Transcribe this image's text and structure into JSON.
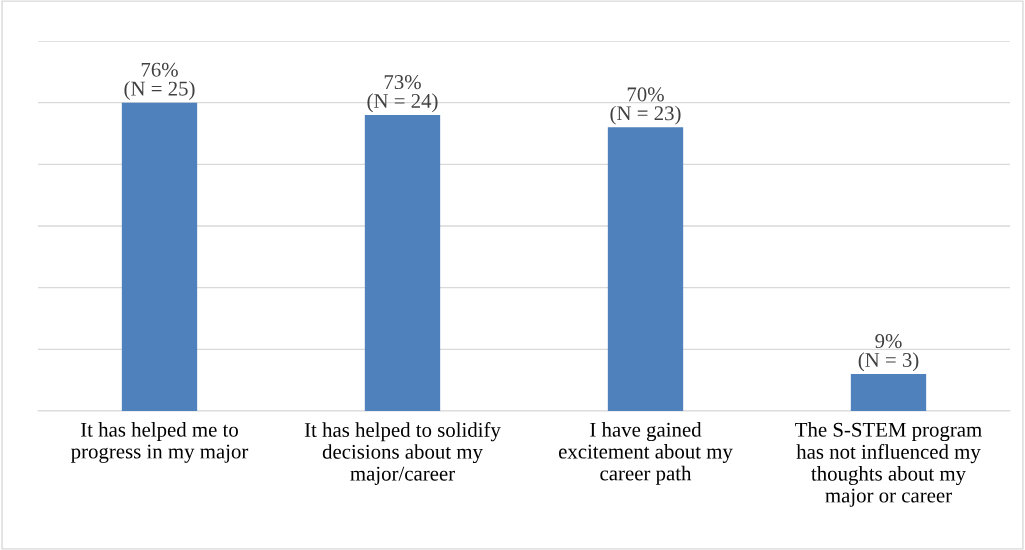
{
  "chart_data": {
    "type": "bar",
    "categories": [
      "It has helped me to\nprogress in my major",
      "It has helped to solidify\ndecisions about my\nmajor/career",
      "I have gained\nexcitement about my\ncareer path",
      "The S-STEM program\nhas not influenced my\nthoughts about my\nmajor or career"
    ],
    "values": [
      25,
      24,
      23,
      3
    ],
    "value_labels": [
      "76%\n(N = 25)",
      "73%\n(N = 24)",
      "70%\n(N = 23)",
      "9%\n(N = 3)"
    ],
    "color": "#4f81bd",
    "ylim": [
      0,
      30
    ],
    "yticks": [
      {
        "value": 0,
        "label": null
      },
      {
        "value": 5,
        "label": null
      },
      {
        "value": 10,
        "label": null
      },
      {
        "value": 15,
        "label": null
      },
      {
        "value": 20,
        "label": null
      },
      {
        "value": 25,
        "label": null
      },
      {
        "value": 30,
        "label": null
      }
    ],
    "tick_labels": "x",
    "grid": "y"
  }
}
